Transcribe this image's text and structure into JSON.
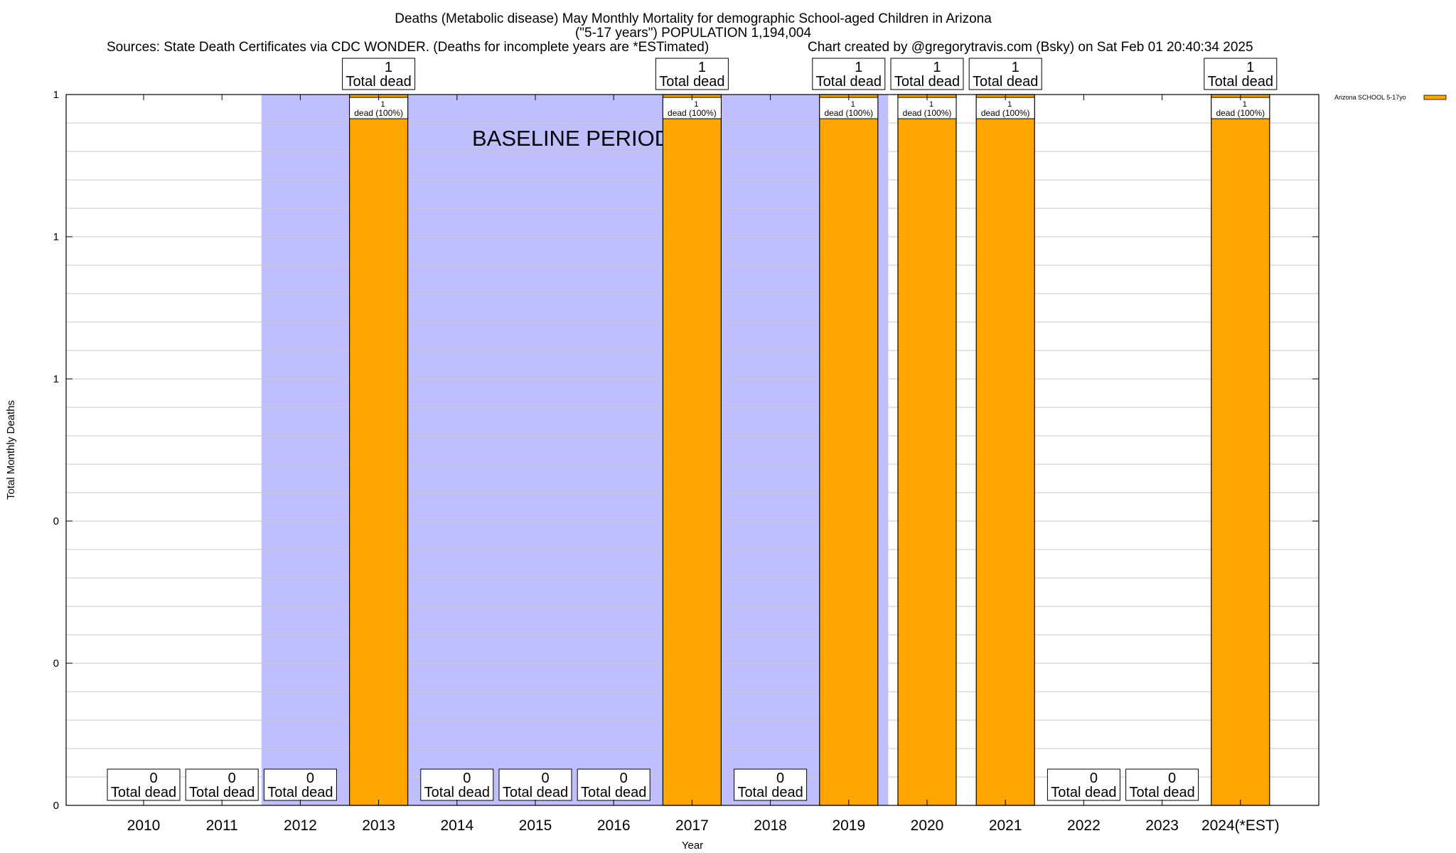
{
  "chart_data": {
    "type": "bar",
    "title_lines": [
      "Deaths (Metabolic disease) May Monthly Mortality for demographic School-aged Children in Arizona",
      "(\"5-17 years\") POPULATION 1,194,004"
    ],
    "sources": "Sources: State Death Certificates via CDC WONDER. (Deaths for incomplete years are *ESTimated)",
    "credit": "Chart created by @gregorytravis.com (Bsky) on Sat Feb 01 20:40:34 2025",
    "xlabel": "Year",
    "ylabel": "Total Monthly Deaths",
    "ylim": [
      0,
      1
    ],
    "y_tick_labels": [
      "0",
      "0",
      "0",
      "1",
      "1",
      "1"
    ],
    "categories": [
      "2010",
      "2011",
      "2012",
      "2013",
      "2014",
      "2015",
      "2016",
      "2017",
      "2018",
      "2019",
      "2020",
      "2021",
      "2022",
      "2023",
      "2024(*EST)"
    ],
    "series": [
      {
        "name": "Arizona SCHOOL 5-17yo",
        "color": "#ffa500",
        "values": [
          0,
          0,
          0,
          1,
          0,
          0,
          0,
          1,
          0,
          1,
          1,
          1,
          0,
          0,
          1
        ]
      }
    ],
    "total_labels": [
      "0\nTotal dead",
      "0\nTotal dead",
      "0\nTotal dead",
      "1\nTotal dead",
      "0\nTotal dead",
      "0\nTotal dead",
      "0\nTotal dead",
      "1\nTotal dead",
      "0\nTotal dead",
      "1\nTotal dead",
      "1\nTotal dead",
      "1\nTotal dead",
      "0\nTotal dead",
      "0\nTotal dead",
      "1\nTotal dead"
    ],
    "bar_labels": [
      "",
      "",
      "",
      "1\ndead (100%)",
      "",
      "",
      "",
      "1\ndead (100%)",
      "",
      "1\ndead (100%)",
      "1\ndead (100%)",
      "1\ndead (100%)",
      "",
      "",
      "1\ndead (100%)"
    ],
    "baseline_label": "BASELINE PERIOD",
    "shaded_periods": [
      {
        "from": "2012",
        "to": "2019",
        "color": "#bfbfff"
      }
    ],
    "legend_position": "top-right",
    "grid": true
  }
}
